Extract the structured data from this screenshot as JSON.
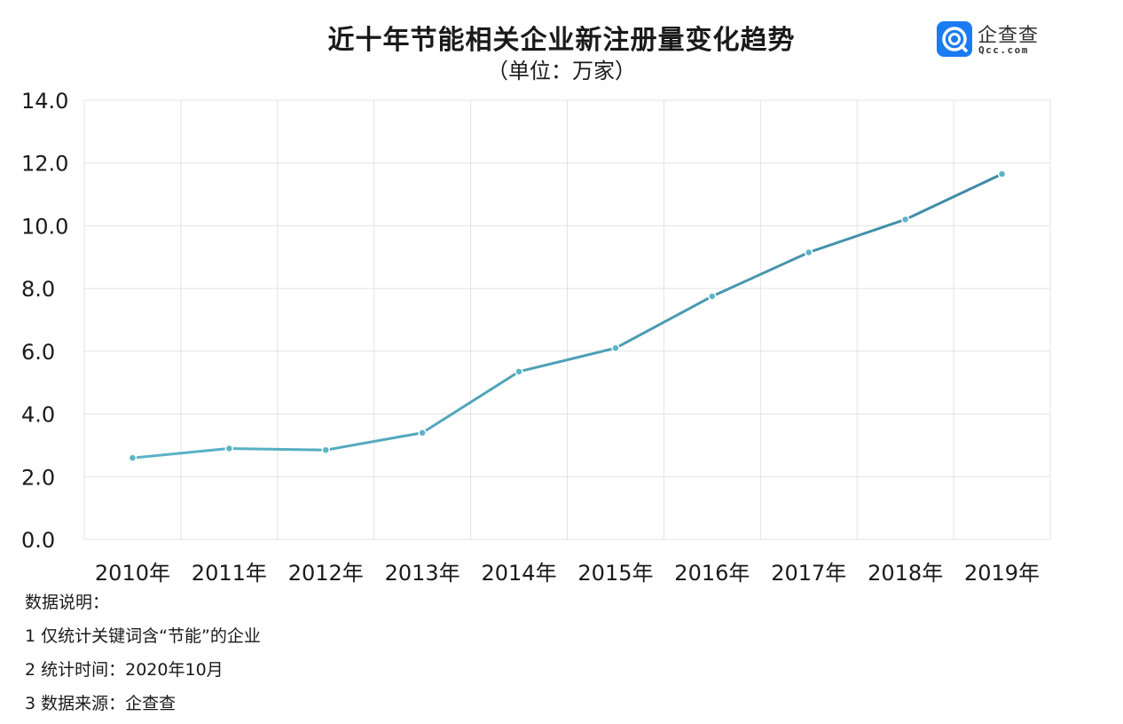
{
  "header": {
    "title": "近十年节能相关企业新注册量变化趋势",
    "subtitle": "（单位：万家）"
  },
  "logo": {
    "name": "企查查",
    "domain": "Qcc.com",
    "icon": "qcc-logo-icon",
    "color": "#1a7cf0"
  },
  "chart_data": {
    "type": "line",
    "categories": [
      "2010年",
      "2011年",
      "2012年",
      "2013年",
      "2014年",
      "2015年",
      "2016年",
      "2017年",
      "2018年",
      "2019年"
    ],
    "series": [
      {
        "values": [
          2.6,
          2.9,
          2.85,
          3.4,
          5.35,
          6.1,
          7.75,
          9.15,
          10.2,
          11.65
        ]
      }
    ],
    "y_ticks": [
      "0.0",
      "2.0",
      "4.0",
      "6.0",
      "8.0",
      "10.0",
      "12.0",
      "14.0"
    ],
    "ylim": [
      0,
      14
    ],
    "grid": true,
    "line_color_start": "#5bb5c8",
    "line_color_end": "#3f8aa3"
  },
  "notes": {
    "heading": "数据说明：",
    "items": [
      "1 仅统计关键词含“节能”的企业",
      "2 统计时间：2020年10月",
      "3 数据来源：企查查"
    ]
  }
}
